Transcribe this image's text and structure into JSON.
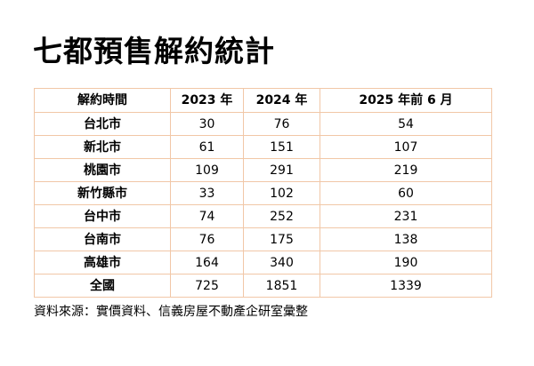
{
  "title": "七都預售解約統計",
  "source": "資料來源：實價資料、信義房屋不動產企研室彙整",
  "chart_data": {
    "type": "table",
    "columns": [
      "解約時間",
      "2023 年",
      "2024 年",
      "2025 年前 6 月"
    ],
    "rows": [
      [
        "台北市",
        "30",
        "76",
        "54"
      ],
      [
        "新北市",
        "61",
        "151",
        "107"
      ],
      [
        "桃園市",
        "109",
        "291",
        "219"
      ],
      [
        "新竹縣市",
        "33",
        "102",
        "60"
      ],
      [
        "台中市",
        "74",
        "252",
        "231"
      ],
      [
        "台南市",
        "76",
        "175",
        "138"
      ],
      [
        "高雄市",
        "164",
        "340",
        "190"
      ],
      [
        "全國",
        "725",
        "1851",
        "1339"
      ]
    ]
  },
  "colors": {
    "border": "#f1c7a7",
    "text": "#000000",
    "background": "#ffffff"
  }
}
